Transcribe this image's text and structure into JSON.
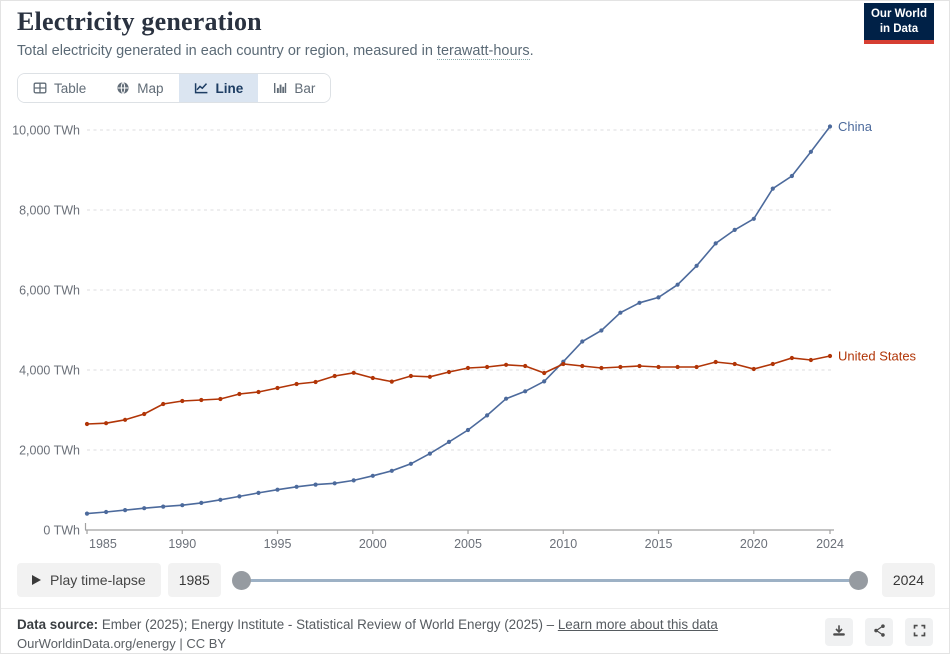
{
  "header": {
    "title": "Electricity generation",
    "subtitle_prefix": "Total electricity generated in each country or region, measured in ",
    "subtitle_term": "terawatt-hours",
    "subtitle_suffix": ".",
    "logo": {
      "line1": "Our World",
      "line2": "in Data",
      "bg_color": "#002147",
      "accent_color": "#d63e32"
    }
  },
  "tabs": [
    {
      "label": "Table",
      "icon": "table-icon",
      "active": false
    },
    {
      "label": "Map",
      "icon": "globe-icon",
      "active": false
    },
    {
      "label": "Line",
      "icon": "line-chart-icon",
      "active": true
    },
    {
      "label": "Bar",
      "icon": "bar-chart-icon",
      "active": false
    }
  ],
  "chart_data": {
    "type": "line",
    "title": "Electricity generation",
    "unit": "TWh",
    "ylim": [
      0,
      10000
    ],
    "ytick_step": 2000,
    "grid": "horizontal dashed",
    "legend_position": "end-of-line labels",
    "xticks": [
      1985,
      1990,
      1995,
      2000,
      2005,
      2010,
      2015,
      2020,
      2024
    ],
    "x": [
      1985,
      1986,
      1987,
      1988,
      1989,
      1990,
      1991,
      1992,
      1993,
      1994,
      1995,
      1996,
      1997,
      1998,
      1999,
      2000,
      2001,
      2002,
      2003,
      2004,
      2005,
      2006,
      2007,
      2008,
      2009,
      2010,
      2011,
      2012,
      2013,
      2014,
      2015,
      2016,
      2017,
      2018,
      2019,
      2020,
      2021,
      2022,
      2023,
      2024
    ],
    "series": [
      {
        "name": "China",
        "color": "#4c6a9c",
        "values": [
          411,
          450,
          497,
          545,
          585,
          621,
          678,
          754,
          839,
          928,
          1008,
          1081,
          1136,
          1167,
          1239,
          1356,
          1481,
          1654,
          1911,
          2203,
          2500,
          2866,
          3282,
          3467,
          3715,
          4207,
          4713,
          4988,
          5432,
          5680,
          5815,
          6133,
          6604,
          7166,
          7503,
          7779,
          8534,
          8849,
          9456,
          10087
        ]
      },
      {
        "name": "United States",
        "color": "#b13507",
        "values": [
          2650,
          2670,
          2755,
          2900,
          3150,
          3225,
          3250,
          3275,
          3400,
          3450,
          3550,
          3650,
          3700,
          3850,
          3930,
          3800,
          3710,
          3850,
          3830,
          3950,
          4050,
          4075,
          4130,
          4100,
          3925,
          4150,
          4100,
          4050,
          4075,
          4100,
          4075,
          4075,
          4075,
          4200,
          4150,
          4025,
          4150,
          4300,
          4250,
          4350
        ]
      }
    ]
  },
  "timeline": {
    "play_label": "Play time-lapse",
    "start_year": "1985",
    "end_year": "2024"
  },
  "footer": {
    "data_source_label": "Data source:",
    "data_source_text": " Ember (2025); Energy Institute - Statistical Review of World Energy (2025) – ",
    "learn_more": "Learn more about this data",
    "attribution": "OurWorldinData.org/energy | CC BY",
    "actions": [
      "download",
      "share",
      "fullscreen"
    ]
  },
  "colors": {
    "grid": "#dcdddf",
    "axis": "#a0a0a0",
    "axis_label": "#6b7079",
    "tab_active_bg": "#dbe5f1",
    "tab_active_text": "#1d3d63"
  }
}
